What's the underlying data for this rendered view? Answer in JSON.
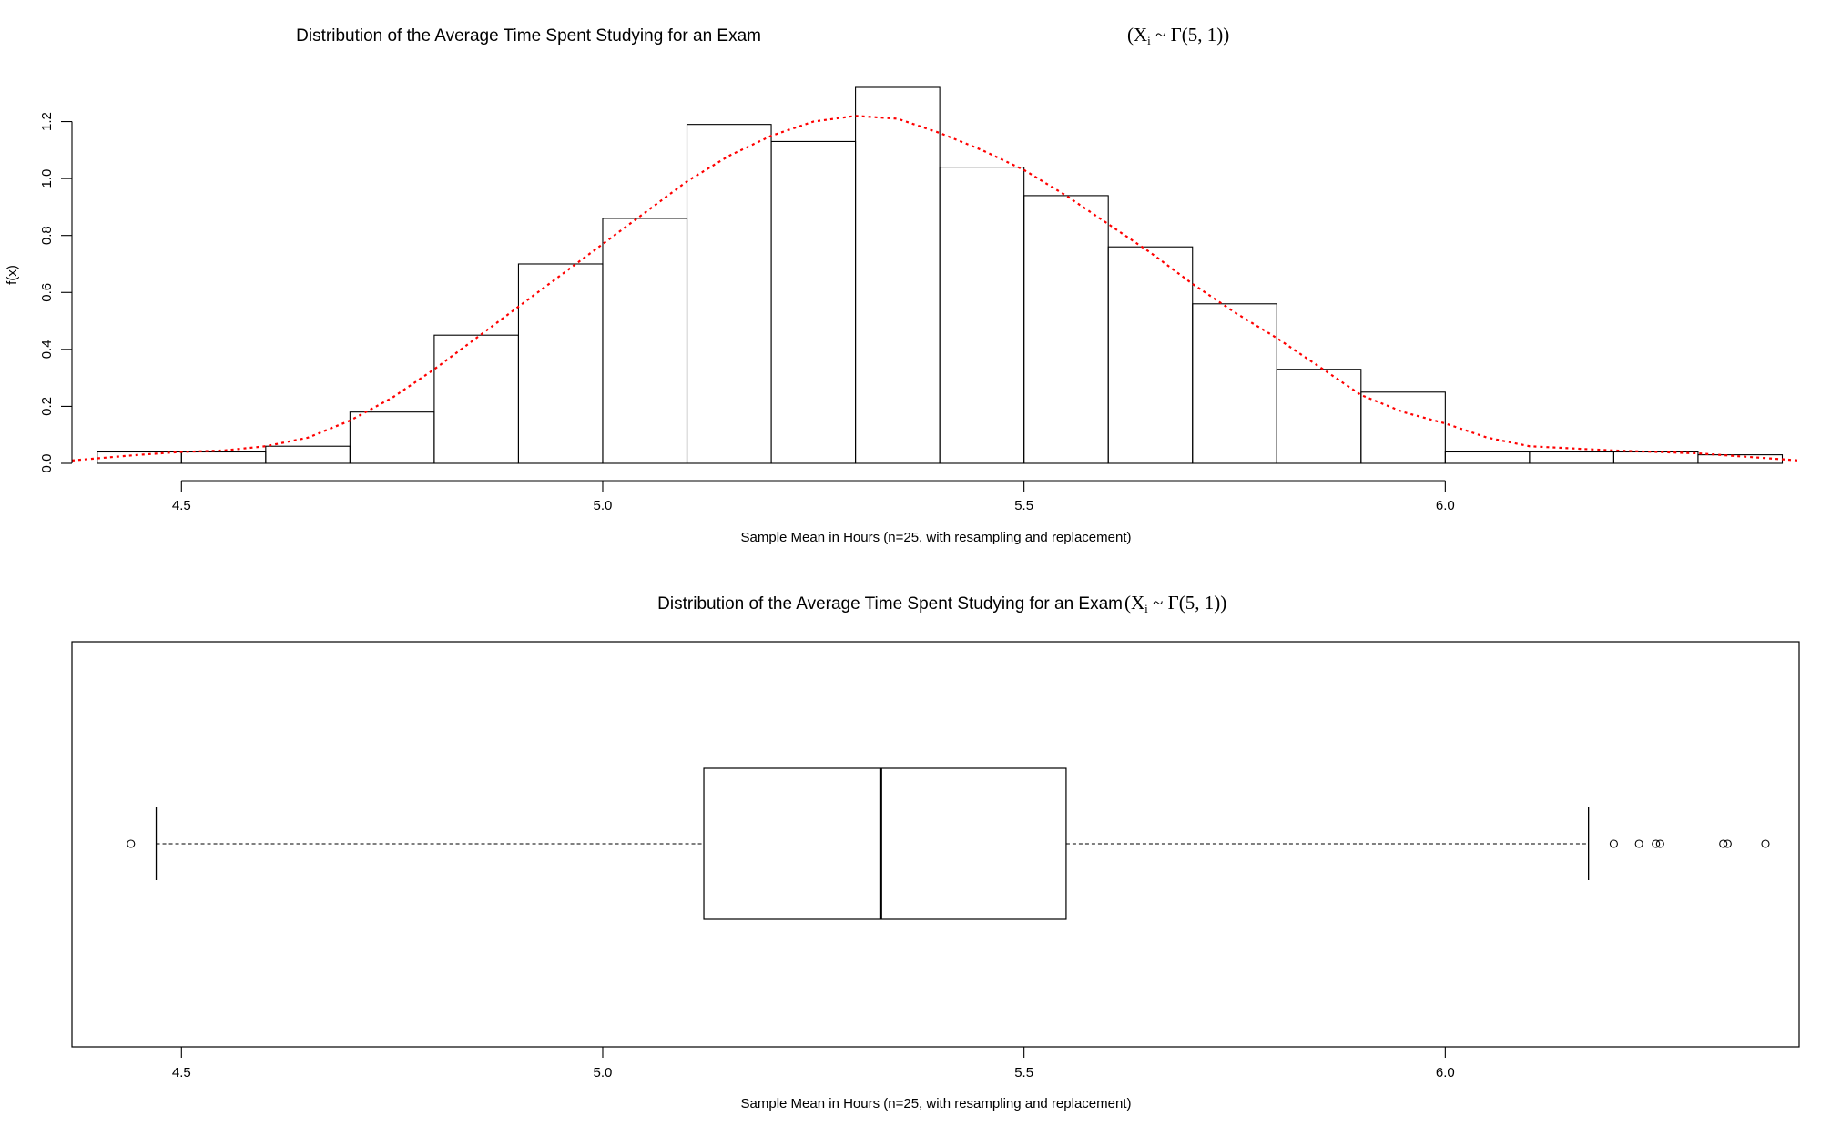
{
  "chart_data": [
    {
      "type": "histogram",
      "title": "Distribution of the Average Time Spent Studying for an Exam",
      "title_math": {
        "open": "(",
        "var": "X",
        "sub": "i",
        "rest": " ~ Γ(5, 1))"
      },
      "xlabel": "Sample Mean in Hours (n=25, with resampling and replacement)",
      "ylabel": "f(x)",
      "xticks": [
        "4.5",
        "5.0",
        "5.5",
        "6.0"
      ],
      "yticks": [
        "0.0",
        "0.2",
        "0.4",
        "0.6",
        "0.8",
        "1.0",
        "1.2"
      ],
      "xlim": [
        4.37,
        6.42
      ],
      "ylim": [
        0,
        1.32
      ],
      "bins": [
        {
          "x0": 4.4,
          "x1": 4.5,
          "density": 0.04
        },
        {
          "x0": 4.5,
          "x1": 4.6,
          "density": 0.04
        },
        {
          "x0": 4.6,
          "x1": 4.7,
          "density": 0.06
        },
        {
          "x0": 4.7,
          "x1": 4.8,
          "density": 0.18
        },
        {
          "x0": 4.8,
          "x1": 4.9,
          "density": 0.45
        },
        {
          "x0": 4.9,
          "x1": 5.0,
          "density": 0.7
        },
        {
          "x0": 5.0,
          "x1": 5.1,
          "density": 0.86
        },
        {
          "x0": 5.1,
          "x1": 5.2,
          "density": 1.19
        },
        {
          "x0": 5.2,
          "x1": 5.3,
          "density": 1.13
        },
        {
          "x0": 5.3,
          "x1": 5.4,
          "density": 1.32
        },
        {
          "x0": 5.4,
          "x1": 5.5,
          "density": 1.04
        },
        {
          "x0": 5.5,
          "x1": 5.6,
          "density": 0.94
        },
        {
          "x0": 5.6,
          "x1": 5.7,
          "density": 0.76
        },
        {
          "x0": 5.7,
          "x1": 5.8,
          "density": 0.56
        },
        {
          "x0": 5.8,
          "x1": 5.9,
          "density": 0.33
        },
        {
          "x0": 5.9,
          "x1": 6.0,
          "density": 0.25
        },
        {
          "x0": 6.0,
          "x1": 6.1,
          "density": 0.04
        },
        {
          "x0": 6.1,
          "x1": 6.2,
          "density": 0.04
        },
        {
          "x0": 6.2,
          "x1": 6.3,
          "density": 0.04
        },
        {
          "x0": 6.3,
          "x1": 6.4,
          "density": 0.03
        }
      ],
      "density_curve": {
        "color": "#ff0000",
        "style": "dotted",
        "points": [
          [
            4.37,
            0.01
          ],
          [
            4.45,
            0.03
          ],
          [
            4.5,
            0.04
          ],
          [
            4.55,
            0.045
          ],
          [
            4.6,
            0.06
          ],
          [
            4.65,
            0.09
          ],
          [
            4.7,
            0.15
          ],
          [
            4.75,
            0.23
          ],
          [
            4.8,
            0.33
          ],
          [
            4.85,
            0.44
          ],
          [
            4.9,
            0.55
          ],
          [
            4.95,
            0.66
          ],
          [
            5.0,
            0.77
          ],
          [
            5.05,
            0.88
          ],
          [
            5.1,
            0.99
          ],
          [
            5.15,
            1.08
          ],
          [
            5.2,
            1.15
          ],
          [
            5.25,
            1.2
          ],
          [
            5.3,
            1.22
          ],
          [
            5.35,
            1.21
          ],
          [
            5.4,
            1.16
          ],
          [
            5.45,
            1.1
          ],
          [
            5.5,
            1.03
          ],
          [
            5.55,
            0.94
          ],
          [
            5.6,
            0.84
          ],
          [
            5.65,
            0.74
          ],
          [
            5.7,
            0.63
          ],
          [
            5.75,
            0.53
          ],
          [
            5.8,
            0.44
          ],
          [
            5.85,
            0.34
          ],
          [
            5.9,
            0.24
          ],
          [
            5.95,
            0.18
          ],
          [
            6.0,
            0.14
          ],
          [
            6.05,
            0.09
          ],
          [
            6.1,
            0.06
          ],
          [
            6.2,
            0.045
          ],
          [
            6.3,
            0.035
          ],
          [
            6.42,
            0.01
          ]
        ]
      }
    },
    {
      "type": "boxplot",
      "title": "Distribution of the Average Time Spent Studying for an Exam",
      "title_math": {
        "open": "(",
        "var": "X",
        "sub": "i",
        "rest": " ~ Γ(5, 1))"
      },
      "xlabel": "Sample Mean in Hours (n=25, with resampling and replacement)",
      "xticks": [
        "4.5",
        "5.0",
        "5.5",
        "6.0"
      ],
      "xlim": [
        4.37,
        6.42
      ],
      "orientation": "horizontal",
      "stats": {
        "whisker_low": 4.47,
        "q1": 5.12,
        "median": 5.33,
        "q3": 5.55,
        "whisker_high": 6.17
      },
      "outliers": [
        4.44,
        6.2,
        6.23,
        6.25,
        6.255,
        6.33,
        6.335,
        6.38
      ]
    }
  ]
}
